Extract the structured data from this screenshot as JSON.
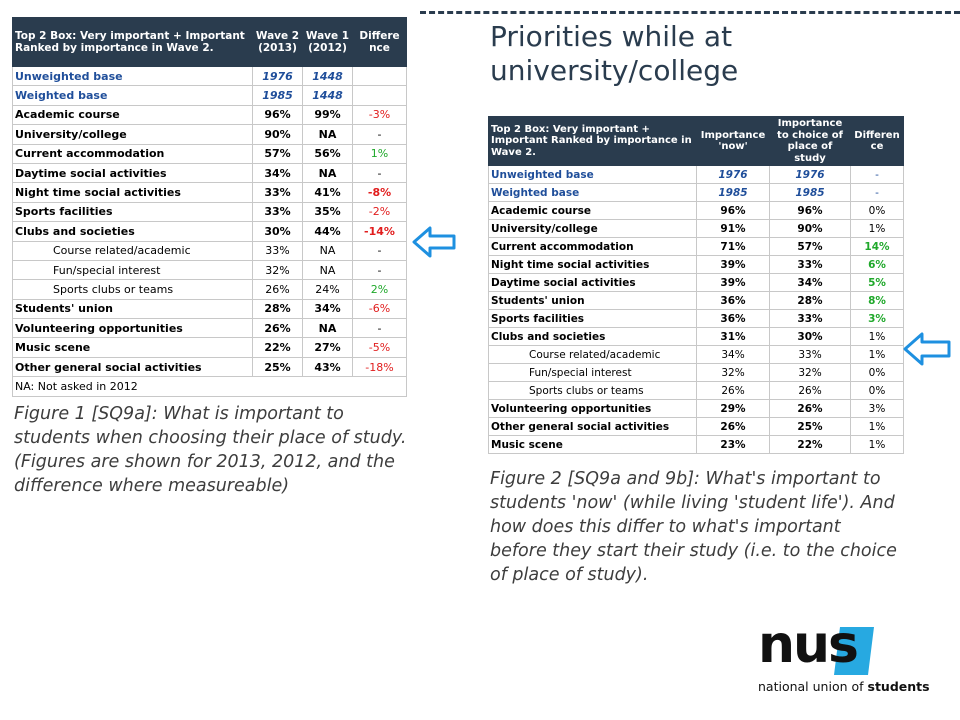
{
  "title": "Priorities while at university/college",
  "table1": {
    "header": {
      "label": "Top 2 Box: Very important + Important Ranked by importance in Wave 2.",
      "col1": "Wave 2 (2013)",
      "col2": "Wave 1 (2012)",
      "col3": "Differe nce"
    },
    "rows": [
      {
        "label": "Unweighted base",
        "a": "1976",
        "b": "1448",
        "d": "",
        "kind": "base",
        "dc": ""
      },
      {
        "label": "Weighted base",
        "a": "1985",
        "b": "1448",
        "d": "",
        "kind": "base",
        "dc": ""
      },
      {
        "label": "Academic course",
        "a": "96%",
        "b": "99%",
        "d": "-3%",
        "kind": "main",
        "dc": "neg"
      },
      {
        "label": "University/college",
        "a": "90%",
        "b": "NA",
        "d": "-",
        "kind": "main",
        "dc": ""
      },
      {
        "label": "Current accommodation",
        "a": "57%",
        "b": "56%",
        "d": "1%",
        "kind": "main",
        "dc": "pos"
      },
      {
        "label": "Daytime social activities",
        "a": "34%",
        "b": "NA",
        "d": "-",
        "kind": "main",
        "dc": ""
      },
      {
        "label": "Night time social activities",
        "a": "33%",
        "b": "41%",
        "d": "-8%",
        "kind": "main",
        "dc": "negb"
      },
      {
        "label": "Sports facilities",
        "a": "33%",
        "b": "35%",
        "d": "-2%",
        "kind": "main",
        "dc": "neg"
      },
      {
        "label": "Clubs and societies",
        "a": "30%",
        "b": "44%",
        "d": "-14%",
        "kind": "main",
        "dc": "negb"
      },
      {
        "label": "Course related/academic",
        "a": "33%",
        "b": "NA",
        "d": "-",
        "kind": "sub",
        "dc": ""
      },
      {
        "label": "Fun/special interest",
        "a": "32%",
        "b": "NA",
        "d": "-",
        "kind": "sub",
        "dc": ""
      },
      {
        "label": "Sports clubs or teams",
        "a": "26%",
        "b": "24%",
        "d": "2%",
        "kind": "sub",
        "dc": "pos"
      },
      {
        "label": "Students' union",
        "a": "28%",
        "b": "34%",
        "d": "-6%",
        "kind": "main",
        "dc": "neg"
      },
      {
        "label": "Volunteering opportunities",
        "a": "26%",
        "b": "NA",
        "d": "-",
        "kind": "main",
        "dc": ""
      },
      {
        "label": "Music scene",
        "a": "22%",
        "b": "27%",
        "d": "-5%",
        "kind": "main",
        "dc": "neg"
      },
      {
        "label": "Other general social activities",
        "a": "25%",
        "b": "43%",
        "d": "-18%",
        "kind": "main",
        "dc": "neg"
      }
    ],
    "note": "NA: Not asked in 2012"
  },
  "caption1": "Figure 1 [SQ9a]:  What is important to students when choosing their place of study. (Figures are shown for 2013, 2012, and the difference where measureable)",
  "table2": {
    "header": {
      "label": "Top 2 Box: Very important + Important Ranked by importance in Wave 2.",
      "col1": "Importance 'now'",
      "col2": "Importance to choice of place of study",
      "col3": "Differen ce"
    },
    "rows": [
      {
        "label": "Unweighted base",
        "a": "1976",
        "b": "1976",
        "d": "-",
        "kind": "base",
        "dc": ""
      },
      {
        "label": "Weighted base",
        "a": "1985",
        "b": "1985",
        "d": "-",
        "kind": "base",
        "dc": ""
      },
      {
        "label": "Academic course",
        "a": "96%",
        "b": "96%",
        "d": "0%",
        "kind": "main",
        "dc": ""
      },
      {
        "label": "University/college",
        "a": "91%",
        "b": "90%",
        "d": "1%",
        "kind": "main",
        "dc": ""
      },
      {
        "label": "Current accommodation",
        "a": "71%",
        "b": "57%",
        "d": "14%",
        "kind": "main",
        "dc": "posb"
      },
      {
        "label": "Night time social activities",
        "a": "39%",
        "b": "33%",
        "d": "6%",
        "kind": "main",
        "dc": "posb"
      },
      {
        "label": "Daytime social activities",
        "a": "39%",
        "b": "34%",
        "d": "5%",
        "kind": "main",
        "dc": "posb"
      },
      {
        "label": "Students' union",
        "a": "36%",
        "b": "28%",
        "d": "8%",
        "kind": "main",
        "dc": "posb"
      },
      {
        "label": "Sports facilities",
        "a": "36%",
        "b": "33%",
        "d": "3%",
        "kind": "main",
        "dc": "posb"
      },
      {
        "label": "Clubs and societies",
        "a": "31%",
        "b": "30%",
        "d": "1%",
        "kind": "main",
        "dc": ""
      },
      {
        "label": "Course related/academic",
        "a": "34%",
        "b": "33%",
        "d": "1%",
        "kind": "sub",
        "dc": ""
      },
      {
        "label": "Fun/special interest",
        "a": "32%",
        "b": "32%",
        "d": "0%",
        "kind": "sub",
        "dc": ""
      },
      {
        "label": "Sports clubs or teams",
        "a": "26%",
        "b": "26%",
        "d": "0%",
        "kind": "sub",
        "dc": ""
      },
      {
        "label": "Volunteering opportunities",
        "a": "29%",
        "b": "26%",
        "d": "3%",
        "kind": "main",
        "dc": ""
      },
      {
        "label": "Other general social activities",
        "a": "26%",
        "b": "25%",
        "d": "1%",
        "kind": "main",
        "dc": ""
      },
      {
        "label": "Music scene",
        "a": "23%",
        "b": "22%",
        "d": "1%",
        "kind": "main",
        "dc": ""
      }
    ]
  },
  "caption2": "Figure 2 [SQ9a and 9b]: What's important to students 'now' (while living 'student life'). And how does this differ to what's important before they start their study (i.e. to the choice of place of study).",
  "logo": {
    "word": "nus",
    "tag_prefix": "national union of ",
    "tag_bold": "students"
  },
  "colors": {
    "header_bg": "#2a3c4e",
    "base_text": "#1f4e9a",
    "negative": "#e11d1d",
    "positive": "#1fa82a",
    "arrow": "#1e90e0",
    "logo_accent": "#27a9e1"
  },
  "icons": [
    "left-arrow-icon",
    "left-arrow-icon"
  ]
}
